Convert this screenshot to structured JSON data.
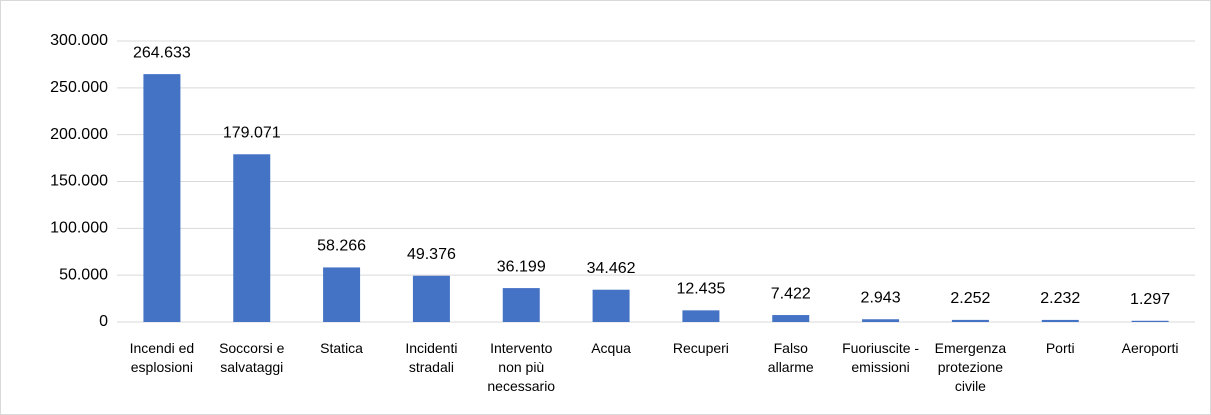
{
  "chart_data": {
    "type": "bar",
    "categories": [
      "Incendi ed esplosioni",
      "Soccorsi e salvataggi",
      "Statica",
      "Incidenti stradali",
      "Intervento non più necessario",
      "Acqua",
      "Recuperi",
      "Falso allarme",
      "Fuoriuscite - emissioni",
      "Emergenza protezione civile",
      "Porti",
      "Aeroporti"
    ],
    "values": [
      264633,
      179071,
      58266,
      49376,
      36199,
      34462,
      12435,
      7422,
      2943,
      2252,
      2232,
      1297
    ],
    "value_labels": [
      "264.633",
      "179.071",
      "58.266",
      "49.376",
      "36.199",
      "34.462",
      "12.435",
      "7.422",
      "2.943",
      "2.252",
      "2.232",
      "1.297"
    ],
    "color": "#4472c4",
    "ylim": [
      0,
      300000
    ],
    "yticks": [
      0,
      {
        "value": 50000,
        "label": "50.000"
      },
      {
        "value": 100000,
        "label": "100.000"
      },
      {
        "value": 150000,
        "label": "150.000"
      },
      {
        "value": 200000,
        "label": "200.000"
      },
      {
        "value": 250000,
        "label": "250.000"
      },
      {
        "value": 300000,
        "label": "300.000"
      }
    ],
    "grid": true
  }
}
